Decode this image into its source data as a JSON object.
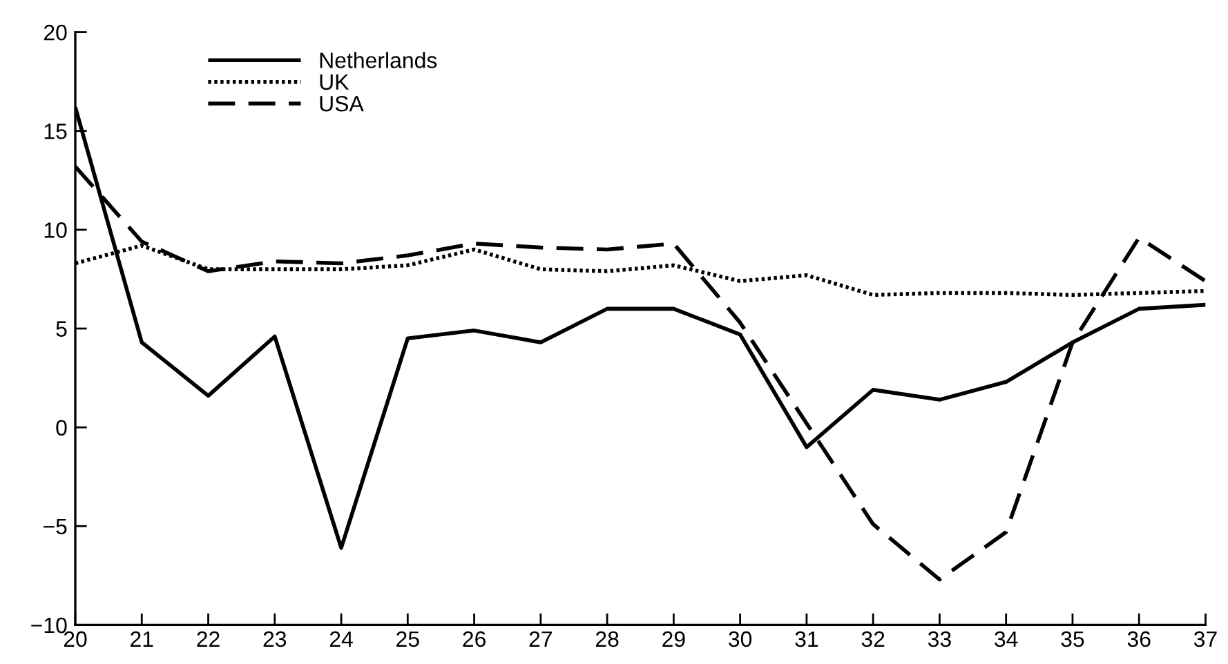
{
  "chart_data": {
    "type": "line",
    "x": [
      20,
      21,
      22,
      23,
      24,
      25,
      26,
      27,
      28,
      29,
      30,
      31,
      32,
      33,
      34,
      35,
      36,
      37
    ],
    "series": [
      {
        "name": "Netherlands",
        "color": "#000000",
        "line_style": "solid",
        "values": [
          16.2,
          4.3,
          1.6,
          4.6,
          -6.1,
          4.5,
          4.9,
          4.3,
          6.0,
          6.0,
          4.7,
          -1.0,
          1.9,
          1.4,
          2.3,
          4.3,
          6.0,
          6.2
        ]
      },
      {
        "name": "UK",
        "color": "#000000",
        "line_style": "dotted",
        "values": [
          8.3,
          9.2,
          8.0,
          8.0,
          8.0,
          8.2,
          9.0,
          8.0,
          7.9,
          8.2,
          7.4,
          7.7,
          6.7,
          6.8,
          6.8,
          6.7,
          6.8,
          6.9
        ]
      },
      {
        "name": "USA",
        "color": "#000000",
        "line_style": "dashed",
        "values": [
          13.2,
          9.4,
          7.9,
          8.4,
          8.3,
          8.7,
          9.3,
          9.1,
          9.0,
          9.3,
          5.3,
          0.2,
          -4.9,
          -7.7,
          -5.3,
          4.3,
          9.6,
          7.4
        ]
      }
    ],
    "xlim": [
      20,
      37
    ],
    "xticks": [
      20,
      21,
      22,
      23,
      24,
      25,
      26,
      27,
      28,
      29,
      30,
      31,
      32,
      33,
      34,
      35,
      36,
      37
    ],
    "ylim": [
      -10,
      20
    ],
    "yticks": [
      -10,
      -5,
      0,
      5,
      10,
      15,
      20
    ],
    "grid": false,
    "legend": "top left",
    "marker": "none"
  }
}
